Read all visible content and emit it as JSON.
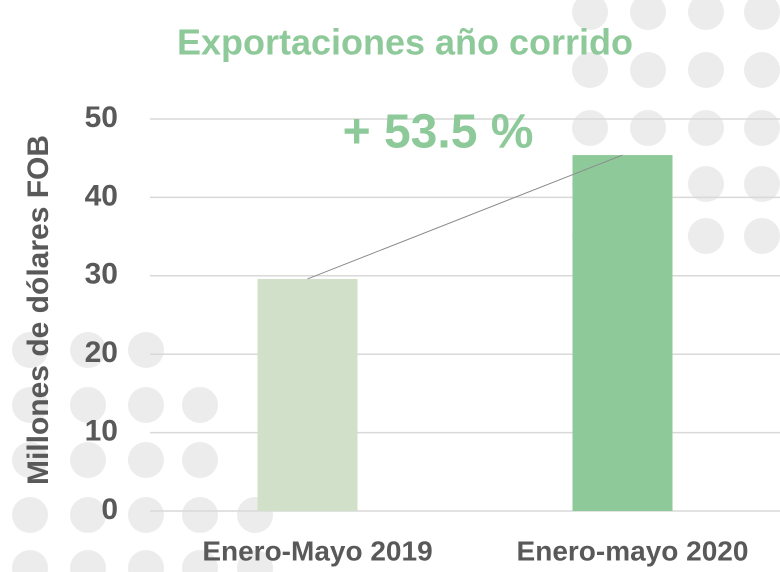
{
  "chart_data": {
    "type": "bar",
    "title": "Exportaciones año corrido",
    "annotation": "+ 53.5 %",
    "y_label": "Millones de dólares FOB",
    "categories": [
      "Enero-Mayo 2019",
      "Enero-mayo 2020"
    ],
    "values": [
      29.6,
      45.4
    ],
    "colors": [
      "#d0e0c9",
      "#8ec99a"
    ],
    "ylim": [
      0,
      50
    ],
    "yticks": [
      0,
      10,
      20,
      30,
      40,
      50
    ],
    "grid": true
  }
}
